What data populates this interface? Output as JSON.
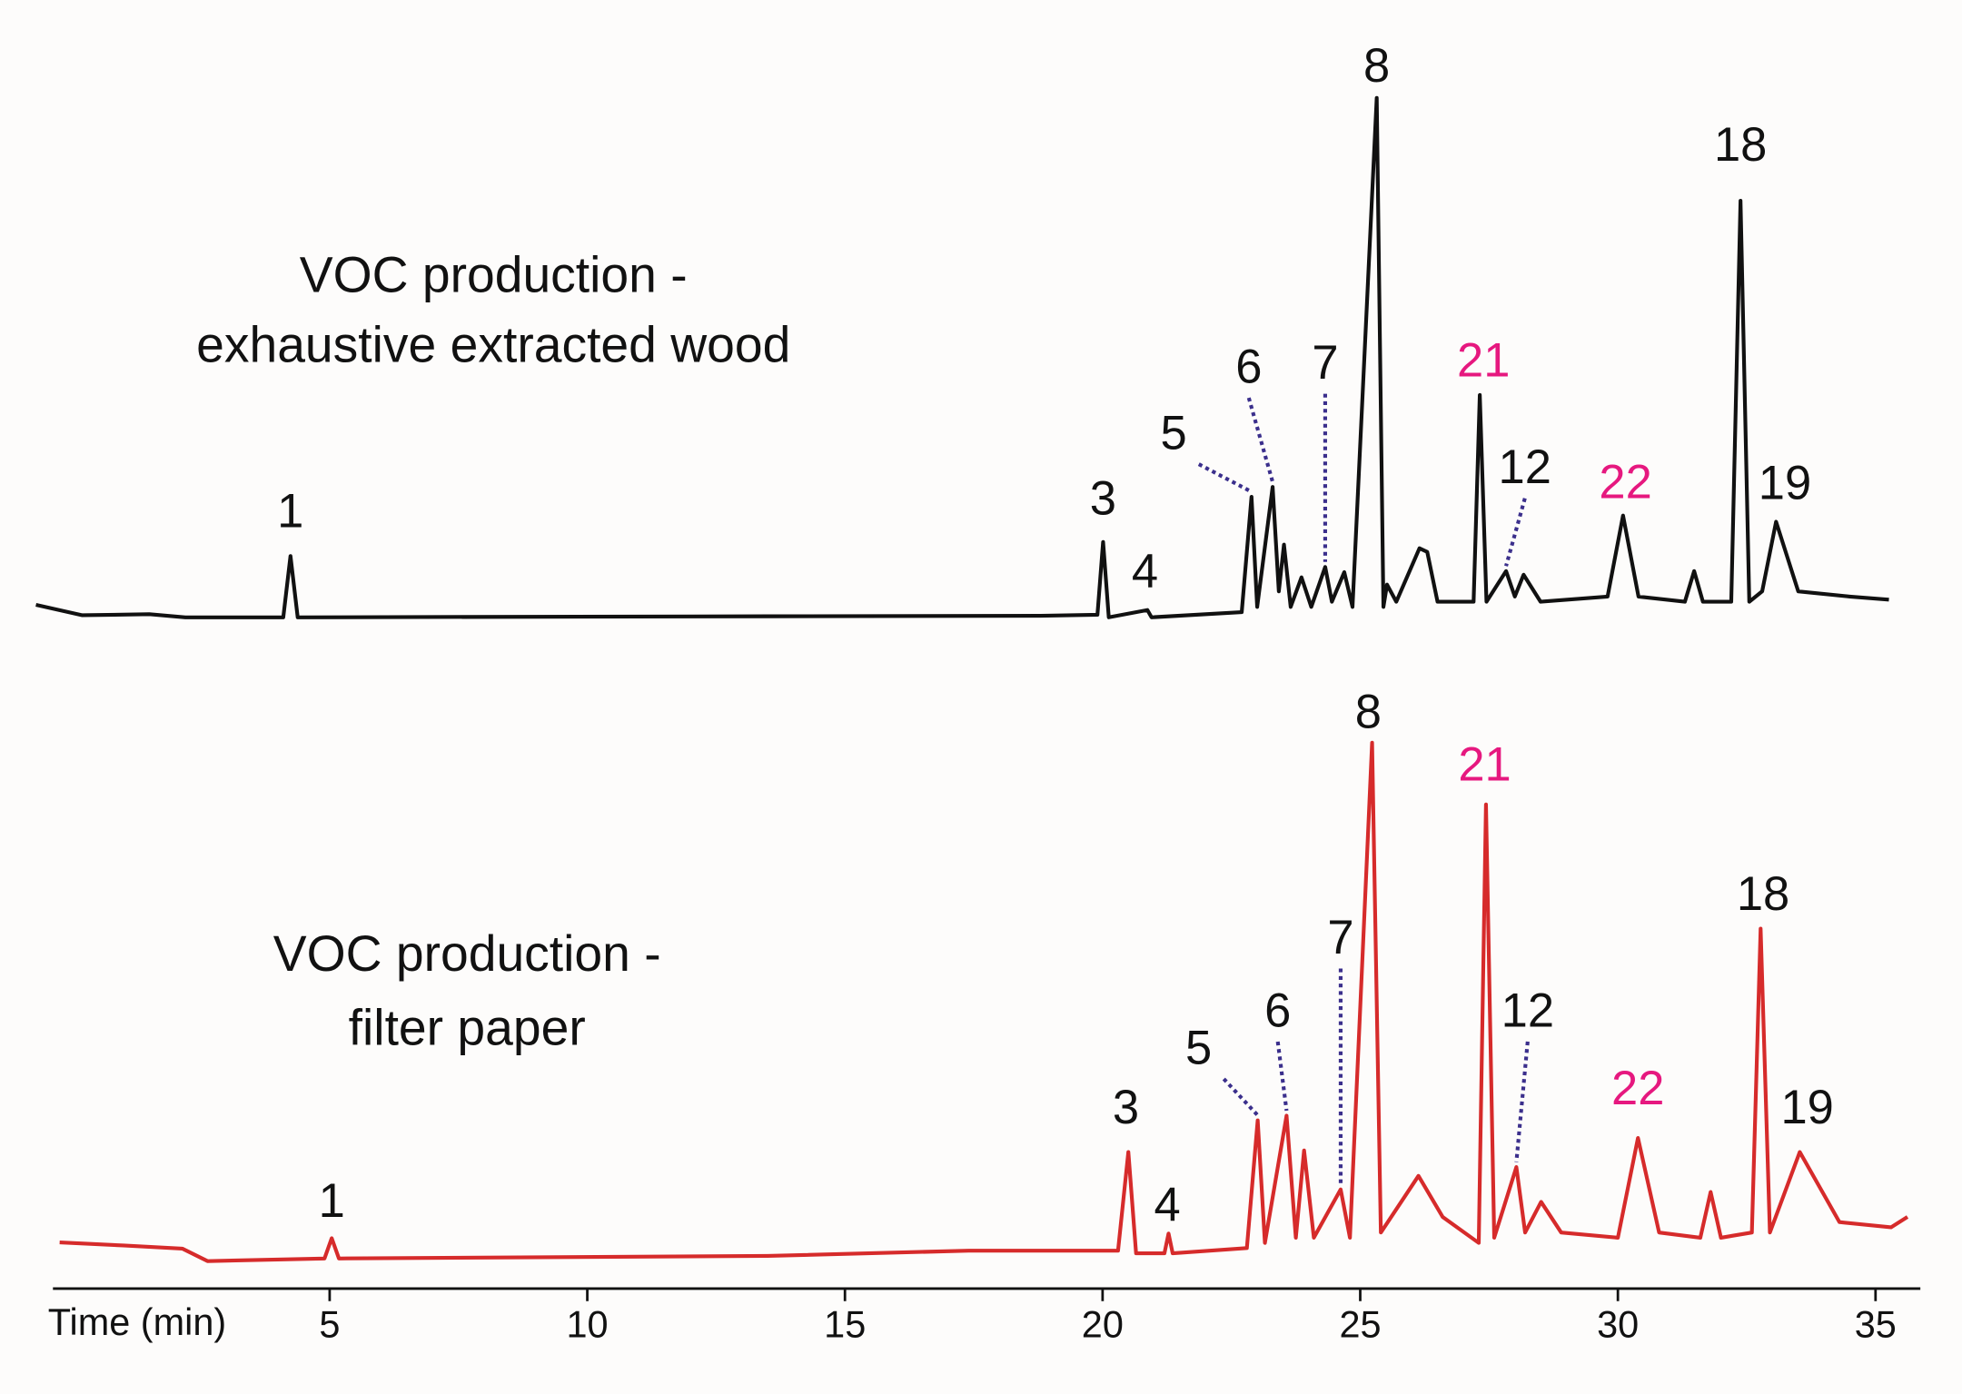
{
  "chart_data": {
    "type": "line",
    "x_label": "Time (min)",
    "xlim": [
      -0.37,
      35.87
    ],
    "xticks": [
      5,
      10,
      15,
      20,
      25,
      30,
      35
    ],
    "ylim": [
      0,
      100
    ],
    "highlight_labels": [
      "21",
      "22"
    ],
    "highlight_color": "#e6187f",
    "series": [
      {
        "label": [
          "VOC production -",
          "exhaustive extracted wood"
        ],
        "color": "#111111",
        "x": [
          -0.7,
          0.2,
          1.5,
          2.2,
          4.1,
          4.24,
          4.38,
          13.5,
          18.8,
          19.9,
          20.01,
          20.12,
          20.87,
          20.95,
          22.7,
          22.89,
          23.0,
          23.3,
          23.42,
          23.52,
          23.65,
          23.86,
          24.05,
          24.32,
          24.45,
          24.69,
          24.85,
          25.32,
          25.45,
          25.52,
          25.7,
          26.15,
          26.3,
          26.5,
          27.2,
          27.32,
          27.45,
          27.83,
          28.0,
          28.17,
          28.5,
          29.8,
          30.1,
          30.4,
          31.3,
          31.48,
          31.65,
          32.2,
          32.38,
          32.55,
          32.8,
          33.07,
          33.5,
          34.5,
          35.26
        ],
        "values": [
          2.4,
          0.4,
          0.6,
          0,
          0,
          11.8,
          0,
          0.2,
          0.3,
          0.5,
          14.5,
          0,
          1.4,
          0,
          1,
          23.2,
          2,
          25.1,
          5,
          14,
          2,
          7.7,
          2,
          9.7,
          3,
          8.7,
          2,
          100,
          2,
          6.3,
          3,
          13.3,
          12.6,
          3,
          3,
          42.8,
          3,
          8.9,
          4,
          8.2,
          3,
          4,
          19.6,
          4,
          3,
          8.9,
          3,
          3,
          80.2,
          3,
          5,
          18.4,
          5,
          4,
          3.4
        ],
        "peak_labels": [
          null,
          null,
          null,
          null,
          null,
          "1",
          null,
          null,
          null,
          null,
          "3",
          null,
          "4",
          null,
          null,
          "5",
          null,
          "6",
          null,
          null,
          null,
          null,
          null,
          "7",
          null,
          null,
          null,
          "8",
          null,
          null,
          null,
          null,
          null,
          null,
          null,
          "21",
          null,
          "12",
          null,
          null,
          null,
          null,
          "22",
          null,
          null,
          null,
          null,
          null,
          "18",
          null,
          null,
          "19",
          null,
          null,
          null
        ]
      },
      {
        "label": [
          "VOC production -",
          "filter paper"
        ],
        "color": "#d62b2b",
        "x": [
          -0.24,
          1.0,
          2.14,
          2.63,
          4.9,
          5.04,
          5.18,
          13.5,
          17.4,
          20.3,
          20.5,
          20.65,
          21.2,
          21.28,
          21.36,
          22.8,
          23.01,
          23.15,
          23.57,
          23.75,
          23.91,
          24.1,
          24.62,
          24.8,
          25.23,
          25.4,
          26.13,
          26.6,
          27.3,
          27.44,
          27.6,
          28.03,
          28.2,
          28.51,
          28.9,
          30.0,
          30.39,
          30.8,
          31.6,
          31.8,
          32.0,
          32.6,
          32.77,
          32.95,
          33.53,
          34.3,
          35.3,
          35.62
        ],
        "values": [
          3.1,
          2.5,
          1.9,
          -0.5,
          0,
          3.9,
          0,
          0.5,
          1.5,
          1.5,
          20.5,
          1,
          1,
          4.8,
          1,
          2,
          26.6,
          3,
          27.5,
          4,
          20.8,
          4,
          13.3,
          4,
          99.3,
          5,
          15.9,
          8,
          3,
          87.4,
          4,
          17.6,
          5,
          10.9,
          5,
          4,
          23.2,
          5,
          4,
          12.8,
          4,
          5,
          63.5,
          5,
          20.5,
          7,
          6,
          8
        ],
        "peak_labels": [
          null,
          null,
          null,
          null,
          null,
          "1",
          null,
          null,
          null,
          null,
          "3",
          null,
          null,
          "4",
          null,
          null,
          "5",
          null,
          "6",
          null,
          null,
          null,
          "7",
          null,
          "8",
          null,
          null,
          null,
          null,
          "21",
          null,
          "12",
          null,
          null,
          null,
          null,
          "22",
          null,
          null,
          null,
          null,
          null,
          "18",
          null,
          "19",
          null,
          null,
          null
        ]
      }
    ]
  }
}
